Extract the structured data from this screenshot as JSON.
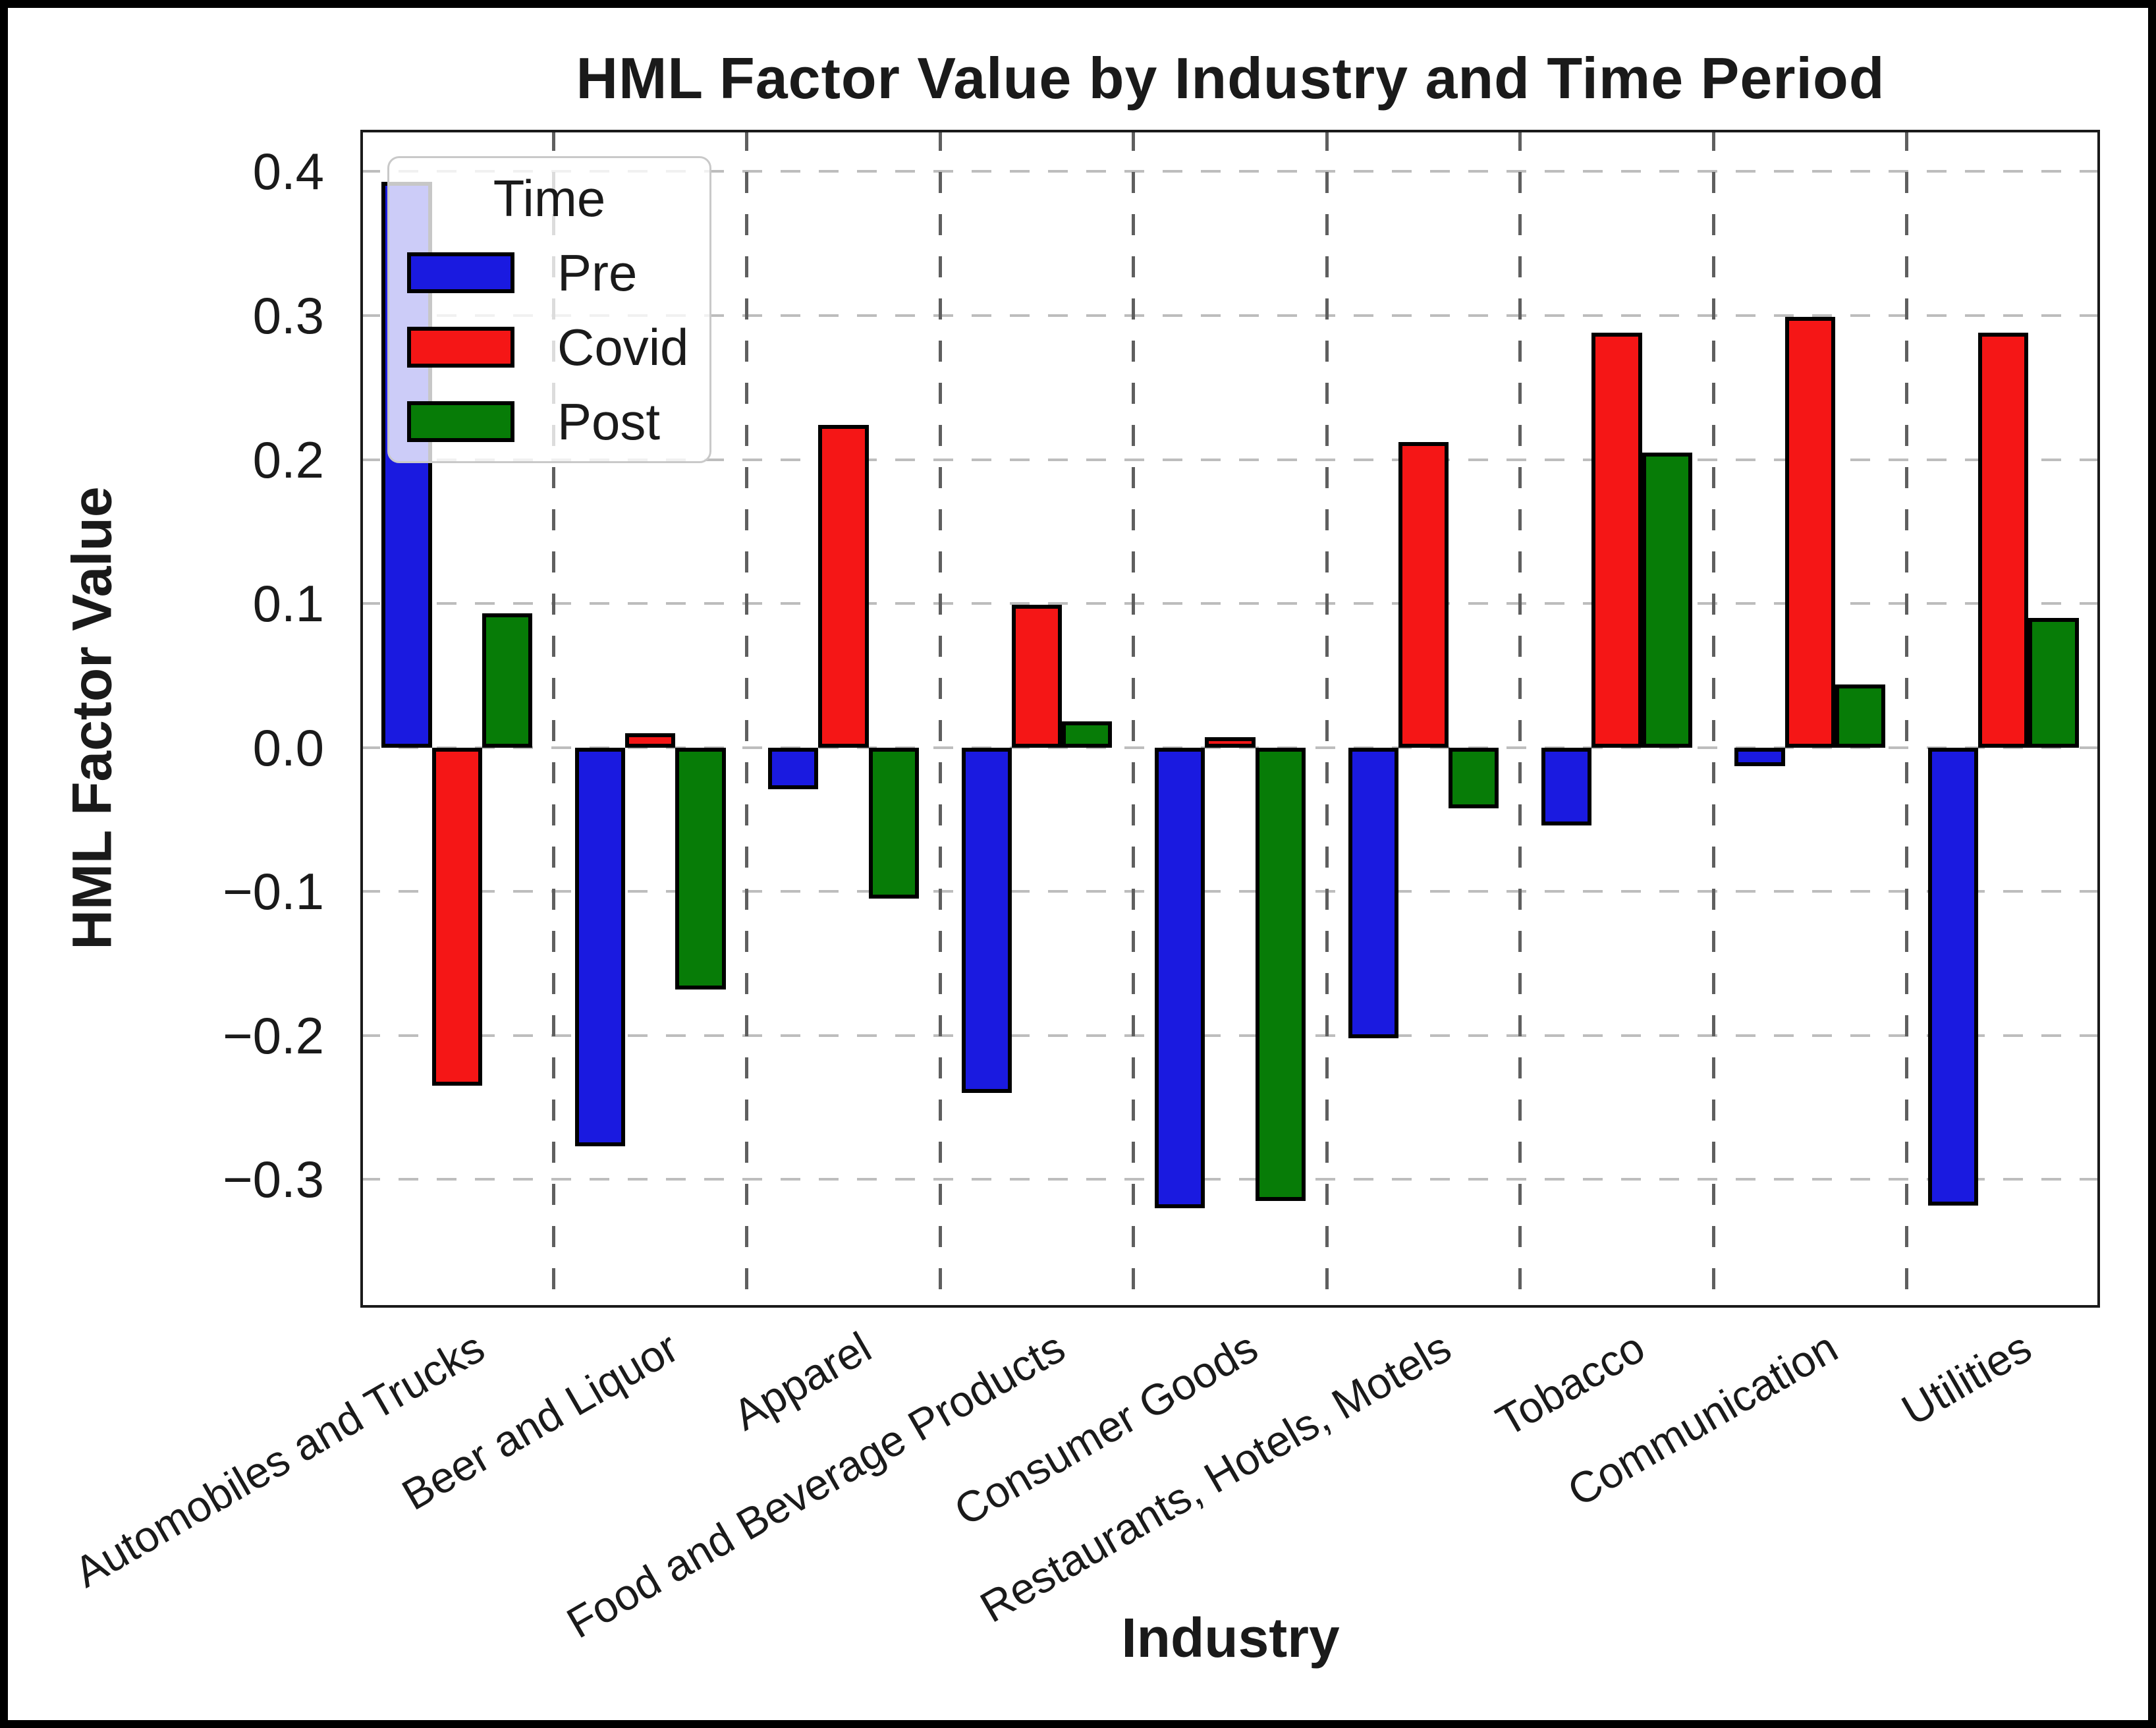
{
  "figure": {
    "background_color": "#ffffff",
    "frame_color": "#000000",
    "text_color": "#1a1a1a"
  },
  "chart_data": {
    "type": "bar",
    "title": "HML Factor Value by Industry and Time Period",
    "xlabel": "Industry",
    "ylabel": "HML Factor Value",
    "categories": [
      "Automobiles and Trucks",
      "Beer and Liquor",
      "Apparel",
      "Food and Beverage Products",
      "Consumer Goods",
      "Restaurants, Hotels, Motels",
      "Tobacco",
      "Communication",
      "Utilities"
    ],
    "series": [
      {
        "name": "Pre",
        "color": "#1a1ae0",
        "values": [
          0.393,
          -0.277,
          -0.029,
          -0.24,
          -0.32,
          -0.202,
          -0.054,
          -0.013,
          -0.318
        ]
      },
      {
        "name": "Covid",
        "color": "#f51616",
        "values": [
          -0.235,
          0.01,
          0.224,
          0.099,
          0.007,
          0.212,
          0.288,
          0.299,
          0.288
        ]
      },
      {
        "name": "Post",
        "color": "#077c07",
        "values": [
          0.093,
          -0.168,
          -0.105,
          0.018,
          -0.315,
          -0.042,
          0.205,
          0.044,
          0.09
        ]
      }
    ],
    "bar_edge_color": "#000000",
    "ylim": [
      -0.389,
      0.429
    ],
    "yticks": [
      0.4,
      0.3,
      0.2,
      0.1,
      0.0,
      -0.1,
      -0.2,
      -0.3
    ],
    "ytick_labels": [
      "0.4",
      "0.3",
      "0.2",
      "0.1",
      "0.0",
      "−0.1",
      "−0.2",
      "−0.3"
    ],
    "xtick_rotation_deg": 30,
    "grid": {
      "horizontal": true,
      "horizontal_style": "dashed",
      "horizontal_color": "#bdbdbd",
      "vertical": true,
      "vertical_style": "dashed",
      "vertical_color": "#5f5f5f",
      "vertical_positions": "category-boundaries"
    },
    "legend": {
      "title": "Time",
      "position": "upper-left",
      "entries": [
        {
          "label": "Pre",
          "color": "#1a1ae0"
        },
        {
          "label": "Covid",
          "color": "#f51616"
        },
        {
          "label": "Post",
          "color": "#077c07"
        }
      ]
    }
  }
}
